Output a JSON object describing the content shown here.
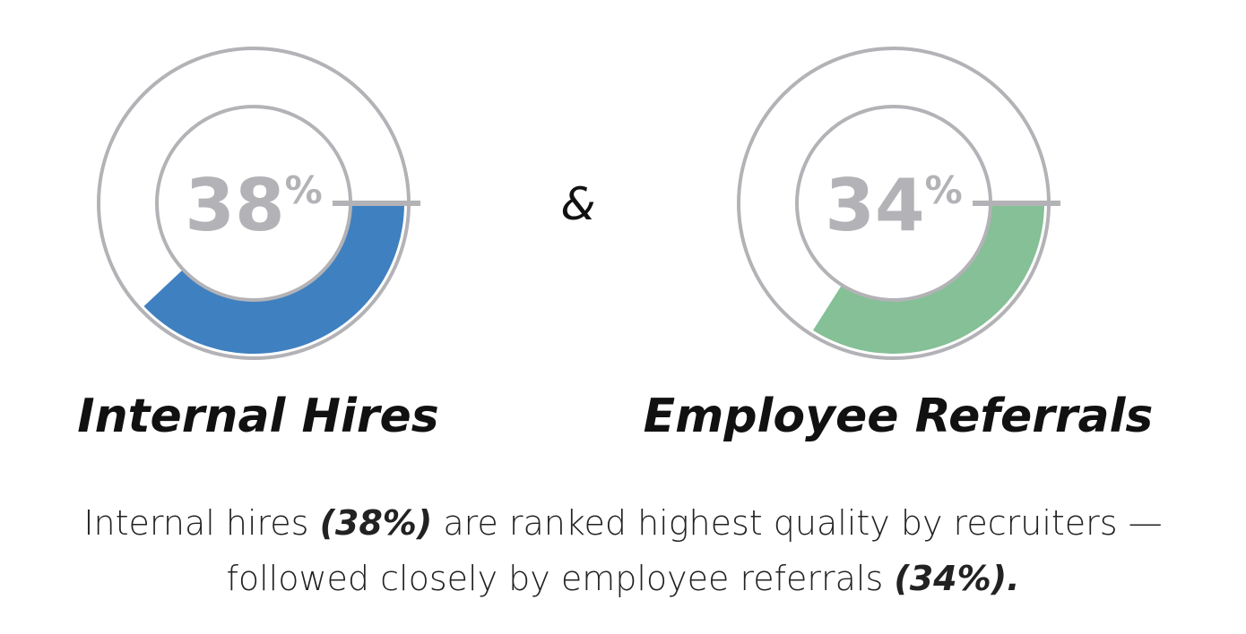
{
  "chart_data": [
    {
      "type": "donut",
      "title": "Internal Hires",
      "values": [
        38
      ],
      "value_labels": [
        "38%"
      ],
      "color": "#3f80c0"
    },
    {
      "type": "donut",
      "title": "Employee Referrals",
      "values": [
        34
      ],
      "value_labels": [
        "34%"
      ],
      "color": "#85c096"
    }
  ],
  "connector": "&",
  "caption": [
    [
      "Internal hires ",
      "(38%)",
      " are ranked highest quality by recruiters —"
    ],
    [
      "followed closely by employee referrals ",
      "(34%)."
    ]
  ]
}
